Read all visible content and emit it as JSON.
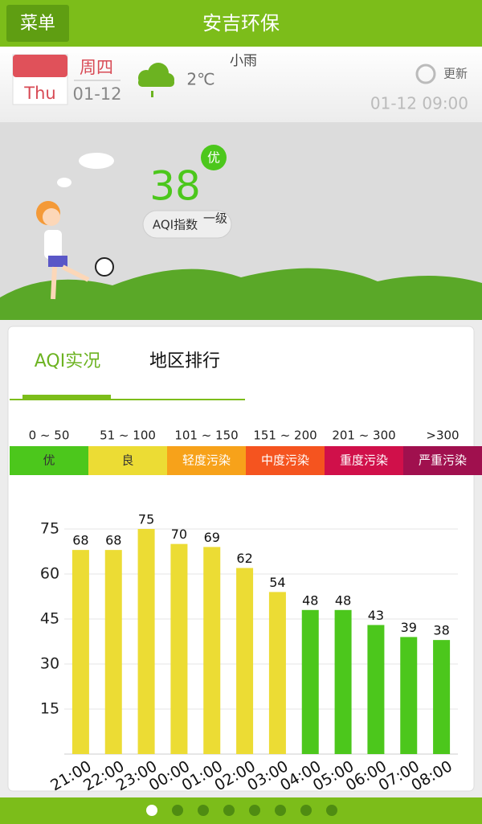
{
  "header": {
    "menu": "菜单",
    "title": "安吉环保"
  },
  "weather": {
    "weekday_en": "Thu",
    "weekday": "周四",
    "date": "01-12",
    "temperature": "2℃",
    "condition": "小雨",
    "refresh": "更新",
    "updated": "01-12  09:00"
  },
  "aqi": {
    "value": 38,
    "level": "优",
    "label": "AQI指数",
    "grade": "一级"
  },
  "tabs": [
    "AQI实况",
    "地区排行"
  ],
  "scale": [
    {
      "range": "0 ~ 50",
      "label": "优",
      "color": "#4cc71c"
    },
    {
      "range": "51 ~ 100",
      "label": "良",
      "color": "#ecdc34"
    },
    {
      "range": "101 ~ 150",
      "label": "轻度污染",
      "color": "#f7a21a"
    },
    {
      "range": "151 ~ 200",
      "label": "中度污染",
      "color": "#f5541f"
    },
    {
      "range": "201 ~ 300",
      "label": "重度污染",
      "color": "#d0104a"
    },
    {
      "range": ">300",
      "label": "严重污染",
      "color": "#a0104e"
    }
  ],
  "chart_data": {
    "type": "bar",
    "categories": [
      "21:00",
      "22:00",
      "23:00",
      "00:00",
      "01:00",
      "02:00",
      "03:00",
      "04:00",
      "05:00",
      "06:00",
      "07:00",
      "08:00"
    ],
    "values": [
      68,
      68,
      75,
      70,
      69,
      62,
      54,
      48,
      48,
      43,
      39,
      38
    ],
    "colors": [
      "#ecdc34",
      "#ecdc34",
      "#ecdc34",
      "#ecdc34",
      "#ecdc34",
      "#ecdc34",
      "#ecdc34",
      "#4cc71c",
      "#4cc71c",
      "#4cc71c",
      "#4cc71c",
      "#4cc71c"
    ],
    "ylim": [
      0,
      75
    ],
    "yticks": [
      15,
      30,
      45,
      60,
      75
    ],
    "grid": true
  }
}
